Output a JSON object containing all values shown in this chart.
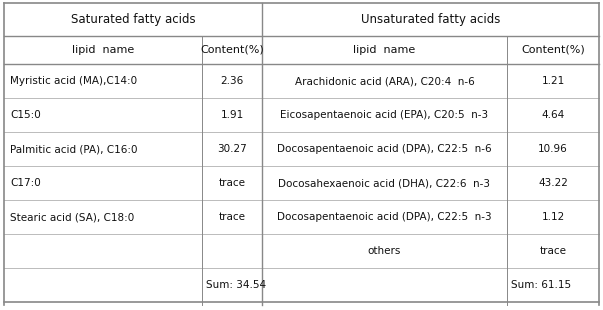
{
  "header1": "Saturated fatty acids",
  "header2": "Unsaturated fatty acids",
  "col_headers": [
    "lipid  name",
    "Content(%)",
    "lipid  name",
    "Content(%)"
  ],
  "sat_rows": [
    [
      "Myristic acid (MA),C14:0",
      "2.36"
    ],
    [
      "C15:0",
      "1.91"
    ],
    [
      "Palmitic acid (PA), C16:0",
      "30.27"
    ],
    [
      "C17:0",
      "trace"
    ],
    [
      "Stearic acid (SA), C18:0",
      "trace"
    ],
    [
      "",
      ""
    ],
    [
      "",
      "Sum: 34.54"
    ]
  ],
  "unsat_rows": [
    [
      "Arachidonic acid (ARA), C20:4  n-6",
      "1.21"
    ],
    [
      "Eicosapentaenoic acid (EPA), C20:5  n-3",
      "4.64"
    ],
    [
      "Docosapentaenoic acid (DPA), C22:5  n-6",
      "10.96"
    ],
    [
      "Docosahexaenoic acid (DHA), C22:6  n-3",
      "43.22"
    ],
    [
      "Docosapentaenoic acid (DPA), C22:5  n-3",
      "1.12"
    ],
    [
      "others",
      "trace"
    ],
    [
      "",
      "Sum: 61.15"
    ]
  ],
  "bg_color": "#ffffff",
  "border_color": "#888888",
  "inner_line_color": "#bbbbbb",
  "text_color": "#111111",
  "font_size": 7.5,
  "header_font_size": 8.5
}
